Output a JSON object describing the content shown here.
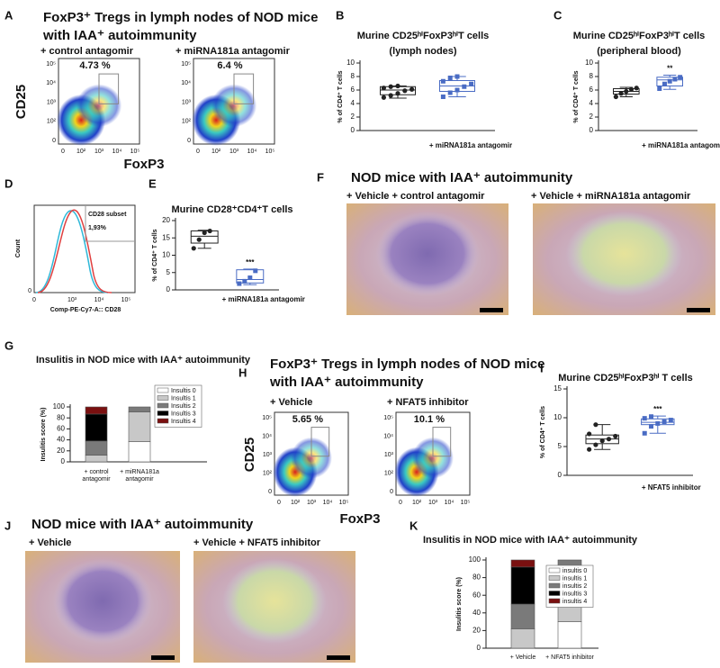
{
  "panels": {
    "labels": [
      "A",
      "B",
      "C",
      "D",
      "E",
      "F",
      "G",
      "H",
      "I",
      "J",
      "K"
    ],
    "A": {
      "title": [
        "FoxP3⁺ Tregs in lymph nodes of NOD mice",
        "with IAA⁺ autoimmunity"
      ],
      "conditions": [
        "+ control antagomir",
        "+ miRNA181a antagomir"
      ],
      "gates": [
        "4.73 %",
        "6.4 %"
      ],
      "y_label": "CD25",
      "x_label": "FoxP3",
      "y_ticks": [
        "10⁵",
        "10⁴",
        "10³",
        "10²",
        "0"
      ],
      "x_ticks": [
        "0",
        "10²",
        "10³",
        "10⁴",
        "10⁵"
      ]
    },
    "D": {
      "y_label": "Count",
      "x_label": "Comp-PE-Cy7-A:: CD28",
      "gate_label": "CD28 subset",
      "gate_value": "1,93%",
      "x_ticks": [
        "0",
        "10³",
        "10⁴",
        "10⁵"
      ],
      "y_ticks": [
        "0"
      ]
    },
    "F": {
      "title": "NOD mice with IAA⁺ autoimmunity",
      "conditions": [
        "+ Vehicle + control antagomir",
        "+ Vehicle + miRNA181a antagomir"
      ]
    },
    "H": {
      "title": [
        "FoxP3⁺ Tregs in lymph nodes of NOD mice",
        "with IAA⁺ autoimmunity"
      ],
      "conditions": [
        "+ Vehicle",
        "+ NFAT5 inhibitor"
      ],
      "gates": [
        "5.65 %",
        "10.1 %"
      ],
      "y_label": "CD25",
      "x_label": "FoxP3",
      "y_ticks": [
        "10⁵",
        "10⁴",
        "10³",
        "10²",
        "0"
      ],
      "x_ticks": [
        "0",
        "10²",
        "10³",
        "10⁴",
        "10⁵"
      ]
    },
    "J": {
      "title": "NOD mice with IAA⁺ autoimmunity",
      "conditions": [
        "+ Vehicle",
        "+ Vehicle + NFAT5 inhibitor"
      ]
    }
  },
  "chart_data": [
    {
      "type": "box",
      "title": [
        "Murine CD25ʰⁱFoxP3ʰⁱT cells",
        "(lymph nodes)"
      ],
      "y_label": "% of CD4⁺ T cells",
      "categories": [
        null,
        "+ miRNA181a antagomir"
      ],
      "groups": [
        {
          "color": "#222222",
          "min": 4.8,
          "q1": 5.3,
          "median": 6.0,
          "q3": 6.5,
          "max": 6.6,
          "points": [
            4.9,
            5.2,
            5.5,
            5.9,
            6.1,
            6.3,
            6.5,
            6.6
          ]
        },
        {
          "color": "#4a6cc4",
          "min": 5.0,
          "q1": 5.8,
          "median": 6.6,
          "q3": 7.4,
          "max": 8.0,
          "points": [
            5.0,
            5.6,
            6.0,
            6.5,
            6.9,
            7.3,
            7.8,
            8.0
          ]
        }
      ],
      "ylim": [
        0,
        10
      ],
      "yticks": [
        0,
        2,
        4,
        6,
        8,
        10
      ]
    },
    {
      "type": "box",
      "title": [
        "Murine CD25ʰⁱFoxP3ʰⁱT cells",
        "(peripheral blood)"
      ],
      "y_label": "% of CD4⁺ T cells",
      "categories": [
        null,
        "+ miRNA181a antagomir"
      ],
      "annotation": "**",
      "groups": [
        {
          "color": "#222222",
          "min": 5.0,
          "q1": 5.4,
          "median": 5.8,
          "q3": 6.2,
          "max": 6.4,
          "points": [
            5.0,
            5.5,
            5.8,
            6.1,
            6.3
          ]
        },
        {
          "color": "#4a6cc4",
          "min": 6.1,
          "q1": 6.6,
          "median": 7.5,
          "q3": 7.9,
          "max": 8.2,
          "points": [
            6.2,
            6.9,
            7.3,
            7.6,
            7.9
          ]
        }
      ],
      "ylim": [
        0,
        10
      ],
      "yticks": [
        0,
        2,
        4,
        6,
        8,
        10
      ]
    },
    {
      "type": "box",
      "title": [
        "Murine CD28⁺CD4⁺T cells"
      ],
      "y_label": "% of CD4⁺ T cells",
      "categories": [
        null,
        "+ miRNA181a antagomir"
      ],
      "annotation": "***",
      "groups": [
        {
          "color": "#222222",
          "min": 12.0,
          "q1": 13.5,
          "median": 15.5,
          "q3": 17.0,
          "max": 17.2,
          "points": [
            12.0,
            14.5,
            16.5,
            17.0
          ]
        },
        {
          "color": "#4a6cc4",
          "min": 1.5,
          "q1": 2.0,
          "median": 3.0,
          "q3": 5.8,
          "max": 6.0,
          "points": [
            1.8,
            2.5,
            3.5,
            5.5
          ]
        }
      ],
      "ylim": [
        0,
        20
      ],
      "yticks": [
        0,
        5,
        10,
        15,
        20
      ]
    },
    {
      "type": "stacked_bar",
      "title": "Insulitis in NOD mice with IAA⁺ autoimmunity",
      "y_label": "Insulitis score (%)",
      "categories": [
        [
          "+ control",
          "antagomir"
        ],
        [
          "+ miRNA181a",
          "antagomir"
        ]
      ],
      "series": [
        {
          "name": "Insultis 0",
          "color": "#ffffff",
          "values": [
            0,
            37
          ]
        },
        {
          "name": "Insultis 1",
          "color": "#c8c8c8",
          "values": [
            12,
            54
          ]
        },
        {
          "name": "Insultis 2",
          "color": "#7a7a7a",
          "values": [
            26,
            9
          ]
        },
        {
          "name": "Insultis 3",
          "color": "#000000",
          "values": [
            49,
            0
          ]
        },
        {
          "name": "Insultis 4",
          "color": "#7a1010",
          "values": [
            13,
            0
          ]
        }
      ],
      "ylim": [
        0,
        100
      ],
      "yticks": [
        0,
        20,
        40,
        60,
        80,
        100
      ]
    },
    {
      "type": "box",
      "title": [
        "Murine CD25ʰⁱFoxP3ʰⁱ T cells"
      ],
      "y_label": "% of CD4⁺ T cells",
      "categories": [
        null,
        "+ NFAT5 inhibitor"
      ],
      "annotation": "***",
      "groups": [
        {
          "color": "#222222",
          "min": 4.5,
          "q1": 5.5,
          "median": 6.3,
          "q3": 7.0,
          "max": 8.8,
          "points": [
            4.5,
            5.3,
            6.0,
            6.3,
            6.8,
            7.2,
            8.8
          ]
        },
        {
          "color": "#4a6cc4",
          "min": 7.3,
          "q1": 8.8,
          "median": 9.2,
          "q3": 9.8,
          "max": 10.3,
          "points": [
            7.3,
            8.5,
            9.0,
            9.3,
            9.6,
            9.9,
            10.2
          ]
        }
      ],
      "ylim": [
        0,
        15
      ],
      "yticks": [
        0,
        5,
        10,
        15
      ]
    },
    {
      "type": "stacked_bar",
      "title": "Insulitis in NOD mice with IAA⁺ autoimmunity",
      "y_label": "Insulitis score (%)",
      "categories": [
        [
          "+ Vehicle"
        ],
        [
          "+ NFAT5 inhibitor"
        ]
      ],
      "series": [
        {
          "name": "insultis 0",
          "color": "#ffffff",
          "values": [
            0,
            30
          ]
        },
        {
          "name": "insultis 1",
          "color": "#c8c8c8",
          "values": [
            22,
            50
          ]
        },
        {
          "name": "insultis 2",
          "color": "#7a7a7a",
          "values": [
            28,
            20
          ]
        },
        {
          "name": "insultis 3",
          "color": "#000000",
          "values": [
            42,
            0
          ]
        },
        {
          "name": "insultis 4",
          "color": "#7a1010",
          "values": [
            8,
            0
          ]
        }
      ],
      "ylim": [
        0,
        100
      ],
      "yticks": [
        0,
        20,
        40,
        60,
        80,
        100
      ]
    }
  ]
}
